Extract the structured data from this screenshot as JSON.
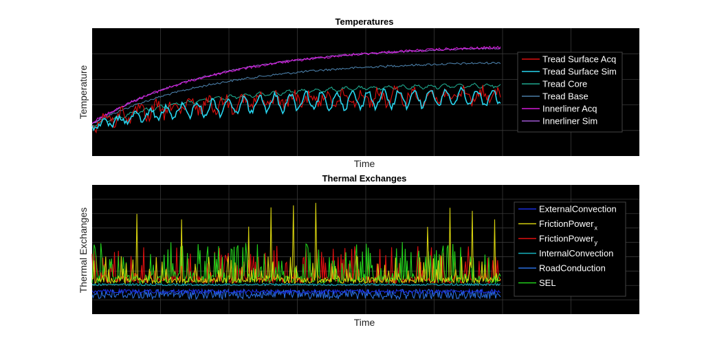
{
  "chart_data": [
    {
      "type": "line",
      "title": "Temperatures",
      "xlabel": "Time",
      "ylabel": "Temperature",
      "grid": true,
      "legend_placement": "right",
      "background": "#000000",
      "series": [
        {
          "name": "Tread Surface Acq",
          "color": "#e01010",
          "shape": "red_noisy",
          "note": "noisy measured signal following tread surface"
        },
        {
          "name": "Tread Surface Sim",
          "color": "#27d6f0",
          "shape": "cyan_osc"
        },
        {
          "name": "Tread Core",
          "color": "#1fa98f",
          "shape": "core"
        },
        {
          "name": "Tread Base",
          "color": "#4a7ea8",
          "shape": "base"
        },
        {
          "name": "Innerliner Acq",
          "color": "#d21ad8",
          "shape": "inner_acq"
        },
        {
          "name": "Innerliner Sim",
          "color": "#a158d6",
          "shape": "inner_sim"
        }
      ]
    },
    {
      "type": "line",
      "title": "Thermal Exchanges",
      "xlabel": "Time",
      "ylabel": "Thermal Exchanges",
      "grid": true,
      "legend_placement": "right",
      "background": "#000000",
      "series": [
        {
          "name": "ExternalConvection",
          "color": "#1a2fe0",
          "shape": "ext"
        },
        {
          "name": "FrictionPower",
          "subscript": "x",
          "color": "#d6d10e",
          "shape": "fx"
        },
        {
          "name": "FrictionPower",
          "subscript": "y",
          "color": "#e01010",
          "shape": "fy"
        },
        {
          "name": "InternalConvection",
          "color": "#16b3c0",
          "shape": "int"
        },
        {
          "name": "RoadConduction",
          "color": "#2a6fe0",
          "shape": "road"
        },
        {
          "name": "SEL",
          "color": "#23d11c",
          "shape": "sel"
        }
      ]
    }
  ]
}
